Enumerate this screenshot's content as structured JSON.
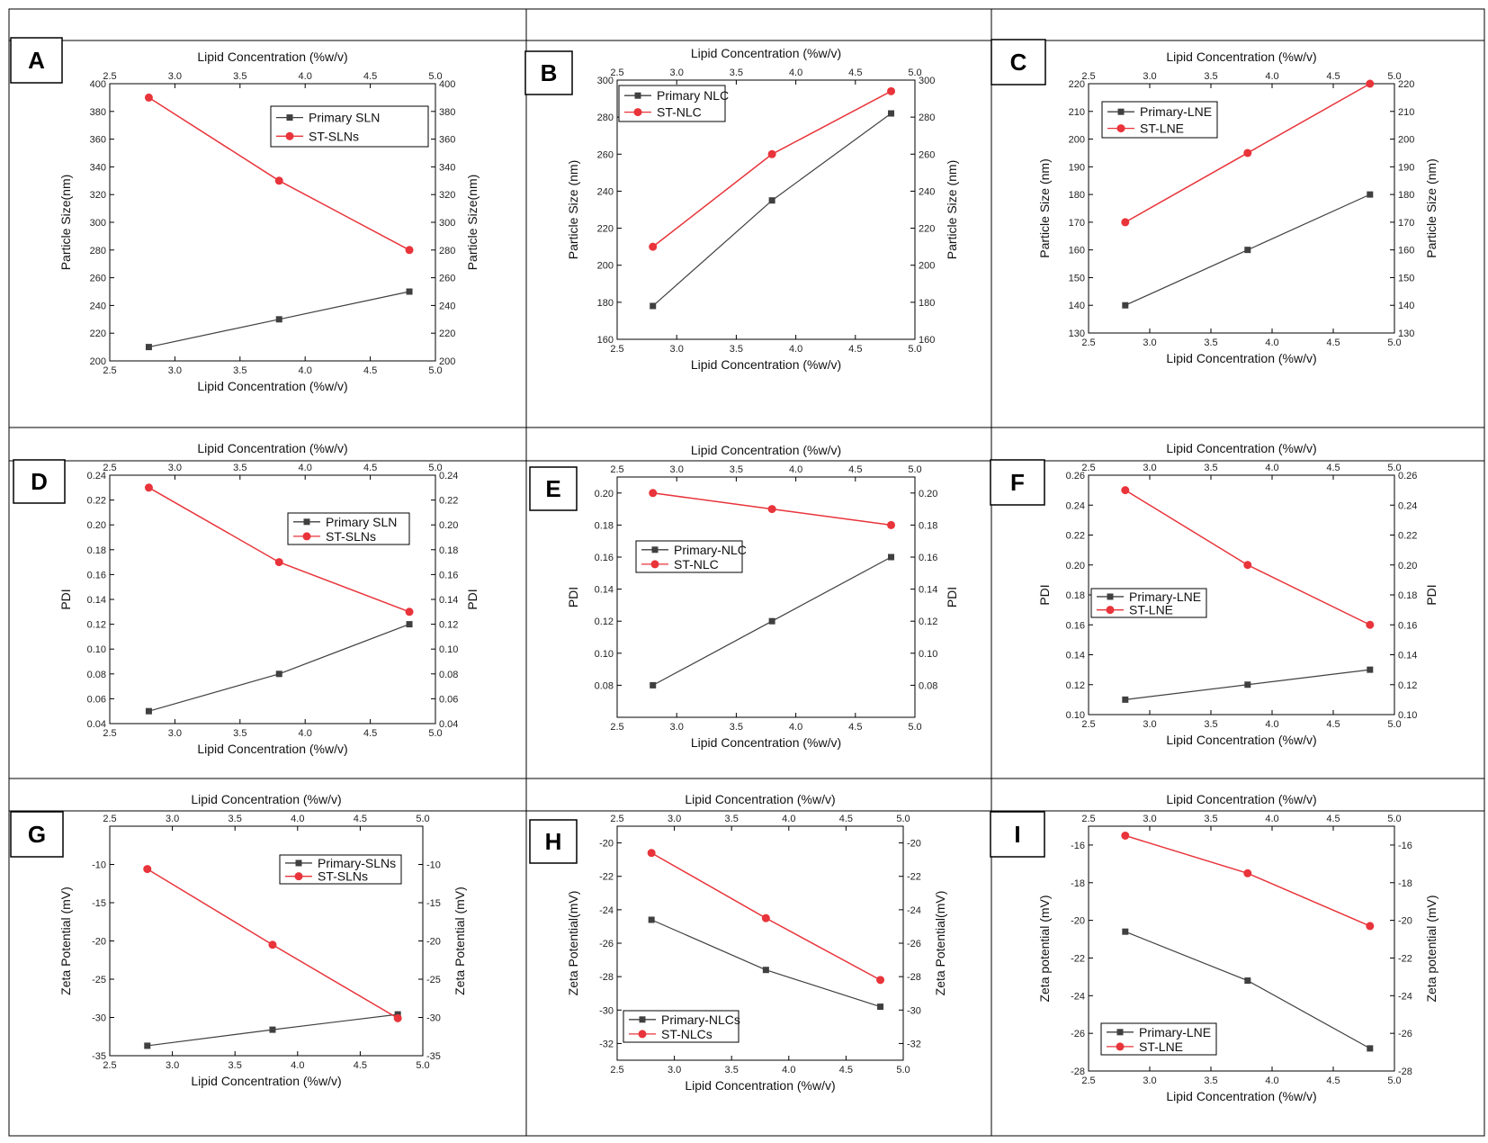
{
  "colors": {
    "primary": "#404040",
    "st": "#e8343a",
    "border": "#000000",
    "axis": "#000000"
  },
  "chart_data": [
    {
      "letter": "A",
      "type": "line",
      "title": "",
      "top_xlabel": "Lipid Concentration (%w/v)",
      "xlabel": "Lipid Concentration (%w/v)",
      "ylabel": "Particle Size(nm)",
      "ylabel_right": "Particle Size(nm)",
      "xlim": [
        2.5,
        5.0
      ],
      "ylim": [
        200,
        400
      ],
      "x_ticks": [
        "2.5",
        "3.0",
        "3.5",
        "4.0",
        "4.5",
        "5.0"
      ],
      "y_ticks": [
        "200",
        "220",
        "240",
        "260",
        "280",
        "300",
        "320",
        "340",
        "360",
        "380",
        "400"
      ],
      "legend": "top-right",
      "series": [
        {
          "name": "Primary SLN",
          "x": [
            2.8,
            3.8,
            4.8
          ],
          "values": [
            210,
            230,
            250
          ]
        },
        {
          "name": "ST-SLNs",
          "x": [
            2.8,
            3.8,
            4.8
          ],
          "values": [
            390,
            330,
            280
          ]
        }
      ]
    },
    {
      "letter": "B",
      "type": "line",
      "title": "",
      "top_xlabel": "Lipid Concentration (%w/v)",
      "xlabel": "Lipid Concentration (%w/v)",
      "ylabel": "Particle Size (nm)",
      "ylabel_right": "Particle Size (nm)",
      "xlim": [
        2.5,
        5.0
      ],
      "ylim": [
        160,
        300
      ],
      "x_ticks": [
        "2.5",
        "3.0",
        "3.5",
        "4.0",
        "4.5",
        "5.0"
      ],
      "y_ticks": [
        "160",
        "180",
        "200",
        "220",
        "240",
        "260",
        "280",
        "300"
      ],
      "legend": "top-left",
      "series": [
        {
          "name": "Primary NLC",
          "x": [
            2.8,
            3.8,
            4.8
          ],
          "values": [
            178,
            235,
            282
          ]
        },
        {
          "name": "ST-NLC",
          "x": [
            2.8,
            3.8,
            4.8
          ],
          "values": [
            210,
            260,
            294
          ]
        }
      ]
    },
    {
      "letter": "C",
      "type": "line",
      "title": "",
      "top_xlabel": "Lipid Concentration (%w/v)",
      "xlabel": "Lipid Concentration (%w/v)",
      "ylabel": "Particle Size (nm)",
      "ylabel_right": "Particle Size (nm)",
      "xlim": [
        2.5,
        5.0
      ],
      "ylim": [
        130,
        220
      ],
      "x_ticks": [
        "2.5",
        "3.0",
        "3.5",
        "4.0",
        "4.5",
        "5.0"
      ],
      "y_ticks": [
        "130",
        "140",
        "150",
        "160",
        "170",
        "180",
        "190",
        "200",
        "210",
        "220"
      ],
      "legend": "top-left",
      "series": [
        {
          "name": "Primary-LNE",
          "x": [
            2.8,
            3.8,
            4.8
          ],
          "values": [
            140,
            160,
            180
          ]
        },
        {
          "name": "ST-LNE",
          "x": [
            2.8,
            3.8,
            4.8
          ],
          "values": [
            170,
            195,
            220
          ]
        }
      ]
    },
    {
      "letter": "D",
      "type": "line",
      "title": "",
      "top_xlabel": "Lipid Concentration (%w/v)",
      "xlabel": "Lipid Concentration (%w/v)",
      "ylabel": "PDI",
      "ylabel_right": "PDI",
      "xlim": [
        2.5,
        5.0
      ],
      "ylim": [
        0.04,
        0.24
      ],
      "x_ticks": [
        "2.5",
        "3.0",
        "3.5",
        "4.0",
        "4.5",
        "5.0"
      ],
      "y_ticks": [
        "0.04",
        "0.06",
        "0.08",
        "0.10",
        "0.12",
        "0.14",
        "0.16",
        "0.18",
        "0.20",
        "0.22",
        "0.24"
      ],
      "legend": "top-right",
      "series": [
        {
          "name": "Primary SLN",
          "x": [
            2.8,
            3.8,
            4.8
          ],
          "values": [
            0.05,
            0.08,
            0.12
          ]
        },
        {
          "name": "ST-SLNs",
          "x": [
            2.8,
            3.8,
            4.8
          ],
          "values": [
            0.23,
            0.17,
            0.13
          ]
        }
      ]
    },
    {
      "letter": "E",
      "type": "line",
      "title": "",
      "top_xlabel": "Lipid Concentration (%w/v)",
      "xlabel": "Lipid Concentration (%w/v)",
      "ylabel": "PDI",
      "ylabel_right": "PDI",
      "xlim": [
        2.5,
        5.0
      ],
      "ylim": [
        0.06,
        0.21
      ],
      "x_ticks": [
        "2.5",
        "3.0",
        "3.5",
        "4.0",
        "4.5",
        "5.0"
      ],
      "y_ticks": [
        "0.08",
        "0.10",
        "0.12",
        "0.14",
        "0.16",
        "0.18",
        "0.20"
      ],
      "legend": "middle-left",
      "series": [
        {
          "name": "Primary-NLC",
          "x": [
            2.8,
            3.8,
            4.8
          ],
          "values": [
            0.08,
            0.12,
            0.16
          ]
        },
        {
          "name": "ST-NLC",
          "x": [
            2.8,
            3.8,
            4.8
          ],
          "values": [
            0.2,
            0.19,
            0.18
          ]
        }
      ]
    },
    {
      "letter": "F",
      "type": "line",
      "title": "",
      "top_xlabel": "Lipid Concentration (%w/v)",
      "xlabel": "Lipid Concentration (%w/v)",
      "ylabel": "PDI",
      "ylabel_right": "PDI",
      "xlim": [
        2.5,
        5.0
      ],
      "ylim": [
        0.1,
        0.26
      ],
      "x_ticks": [
        "2.5",
        "3.0",
        "3.5",
        "4.0",
        "4.5",
        "5.0"
      ],
      "y_ticks": [
        "0.10",
        "0.12",
        "0.14",
        "0.16",
        "0.18",
        "0.20",
        "0.22",
        "0.24",
        "0.26"
      ],
      "legend": "middle-left",
      "series": [
        {
          "name": "Primary-LNE",
          "x": [
            2.8,
            3.8,
            4.8
          ],
          "values": [
            0.11,
            0.12,
            0.13
          ]
        },
        {
          "name": "ST-LNE",
          "x": [
            2.8,
            3.8,
            4.8
          ],
          "values": [
            0.25,
            0.2,
            0.16
          ]
        }
      ]
    },
    {
      "letter": "G",
      "type": "line",
      "title": "",
      "top_xlabel": "Lipid Concentration (%w/v)",
      "xlabel": "Lipid Concentration (%w/v)",
      "ylabel": "Zeta Potential (mV)",
      "ylabel_right": "Zeta Potential (mV)",
      "xlim": [
        2.5,
        5.0
      ],
      "ylim": [
        -35,
        -5
      ],
      "x_ticks": [
        "2.5",
        "3.0",
        "3.5",
        "4.0",
        "4.5",
        "5.0"
      ],
      "y_ticks": [
        "-35",
        "-30",
        "-25",
        "-20",
        "-15",
        "-10"
      ],
      "legend": "top-right",
      "series": [
        {
          "name": "Primary-SLNs",
          "x": [
            2.8,
            3.8,
            4.8
          ],
          "values": [
            -33.7,
            -31.6,
            -29.6
          ]
        },
        {
          "name": "ST-SLNs",
          "x": [
            2.8,
            3.8,
            4.8
          ],
          "values": [
            -10.6,
            -20.5,
            -30.1
          ]
        }
      ]
    },
    {
      "letter": "H",
      "type": "line",
      "title": "",
      "top_xlabel": "Lipid Concentration (%w/v)",
      "xlabel": "Lipid Concentration (%w/v)",
      "ylabel": "Zeta Potential(mV)",
      "ylabel_right": "Zeta Potential(mV)",
      "xlim": [
        2.5,
        5.0
      ],
      "ylim": [
        -33,
        -19
      ],
      "x_ticks": [
        "2.5",
        "3.0",
        "3.5",
        "4.0",
        "4.5",
        "5.0"
      ],
      "y_ticks": [
        "-32",
        "-30",
        "-28",
        "-26",
        "-24",
        "-22",
        "-20"
      ],
      "legend": "bottom-left",
      "series": [
        {
          "name": "Primary-NLCs",
          "x": [
            2.8,
            3.8,
            4.8
          ],
          "values": [
            -24.6,
            -27.6,
            -29.8
          ]
        },
        {
          "name": "ST-NLCs",
          "x": [
            2.8,
            3.8,
            4.8
          ],
          "values": [
            -20.6,
            -24.5,
            -28.2
          ]
        }
      ]
    },
    {
      "letter": "I",
      "type": "line",
      "title": "",
      "top_xlabel": "Lipid Concentration (%w/v)",
      "xlabel": "Lipid Concentration (%w/v)",
      "ylabel": "Zeta potential (mV)",
      "ylabel_right": "Zeta potential (mV)",
      "xlim": [
        2.5,
        5.0
      ],
      "ylim": [
        -28,
        -15
      ],
      "x_ticks": [
        "2.5",
        "3.0",
        "3.5",
        "4.0",
        "4.5",
        "5.0"
      ],
      "y_ticks": [
        "-28",
        "-26",
        "-24",
        "-22",
        "-20",
        "-18",
        "-16"
      ],
      "legend": "bottom-left",
      "series": [
        {
          "name": "Primary-LNE",
          "x": [
            2.8,
            3.8,
            4.8
          ],
          "values": [
            -20.6,
            -23.2,
            -26.8
          ]
        },
        {
          "name": "ST-LNE",
          "x": [
            2.8,
            3.8,
            4.8
          ],
          "values": [
            -15.5,
            -17.5,
            -20.3
          ]
        }
      ]
    }
  ]
}
